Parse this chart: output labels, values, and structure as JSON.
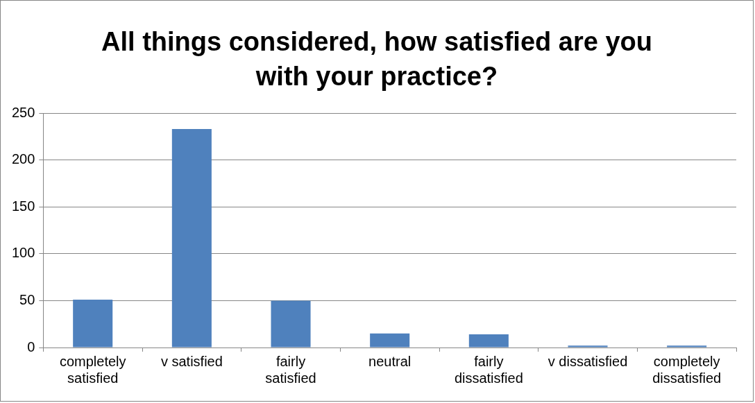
{
  "chart_data": {
    "type": "bar",
    "title": "All things considered, how satisfied are you with your practice?",
    "categories": [
      "completely satisfied",
      "v satisfied",
      "fairly satisfied",
      "neutral",
      "fairly dissatisfied",
      "v dissatisfied",
      "completely dissatisfied"
    ],
    "values": [
      51,
      233,
      50,
      15,
      14,
      2,
      2
    ],
    "color": "#4f81bd",
    "ylim": [
      0,
      250
    ],
    "yticks": [
      0,
      50,
      100,
      150,
      200,
      250
    ],
    "grid": "y",
    "legend": false
  }
}
